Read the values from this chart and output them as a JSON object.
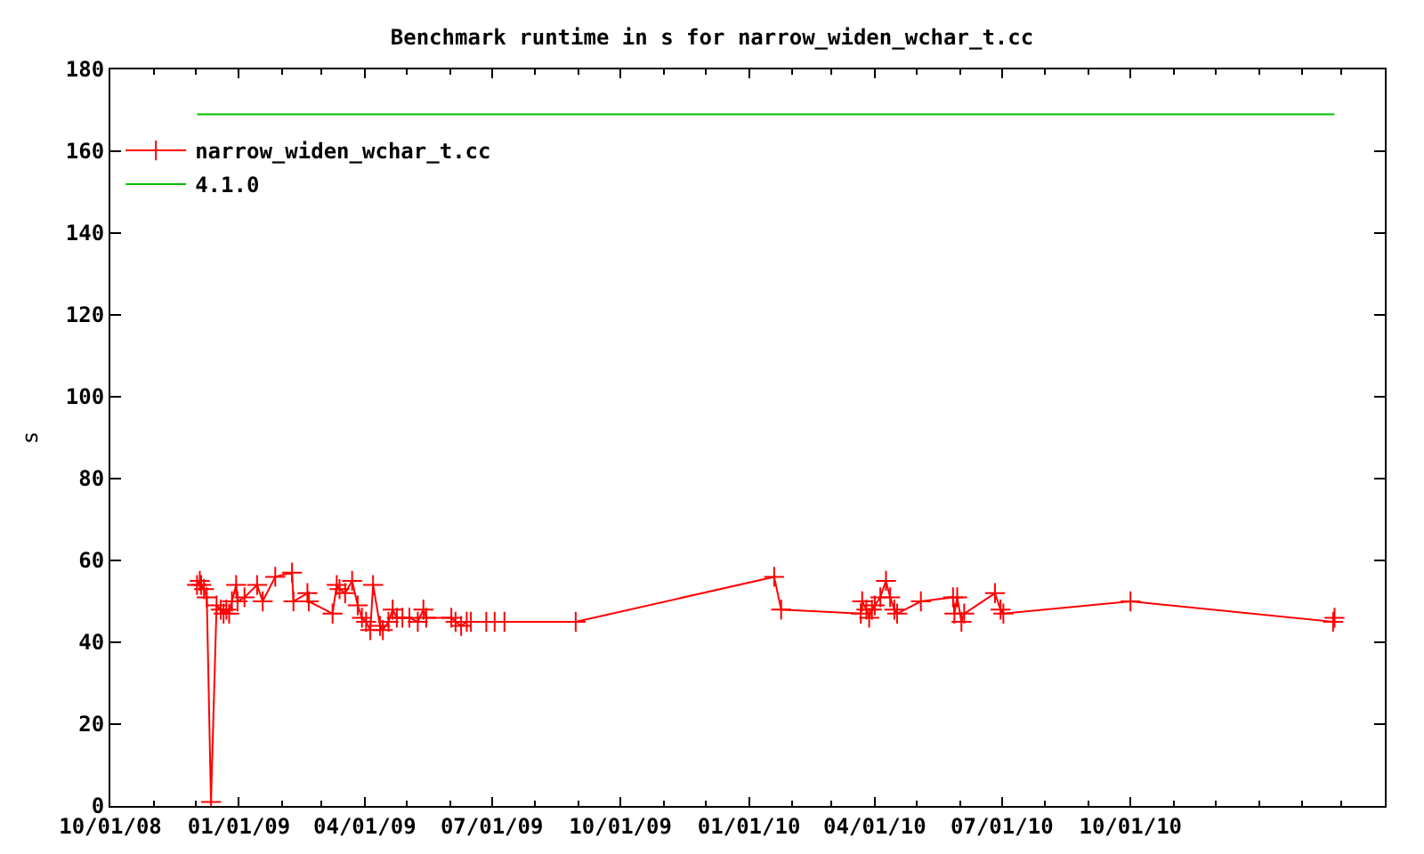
{
  "chart_data": {
    "type": "line",
    "title": "Benchmark runtime in s for narrow_widen_wchar_t.cc",
    "ylabel": "s",
    "xlim": [
      "2008-10-01",
      "2011-04-01"
    ],
    "xticks": [
      {
        "value": "2008-10-01",
        "label": "10/01/08"
      },
      {
        "value": "2008-11-01",
        "label": null
      },
      {
        "value": "2008-12-01",
        "label": null
      },
      {
        "value": "2009-01-01",
        "label": "01/01/09"
      },
      {
        "value": "2009-02-01",
        "label": null
      },
      {
        "value": "2009-03-01",
        "label": null
      },
      {
        "value": "2009-04-01",
        "label": "04/01/09"
      },
      {
        "value": "2009-05-01",
        "label": null
      },
      {
        "value": "2009-06-01",
        "label": null
      },
      {
        "value": "2009-07-01",
        "label": "07/01/09"
      },
      {
        "value": "2009-08-01",
        "label": null
      },
      {
        "value": "2009-09-01",
        "label": null
      },
      {
        "value": "2009-10-01",
        "label": "10/01/09"
      },
      {
        "value": "2009-11-01",
        "label": null
      },
      {
        "value": "2009-12-01",
        "label": null
      },
      {
        "value": "2010-01-01",
        "label": "01/01/10"
      },
      {
        "value": "2010-02-01",
        "label": null
      },
      {
        "value": "2010-03-01",
        "label": null
      },
      {
        "value": "2010-04-01",
        "label": "04/01/10"
      },
      {
        "value": "2010-05-01",
        "label": null
      },
      {
        "value": "2010-06-01",
        "label": null
      },
      {
        "value": "2010-07-01",
        "label": "07/01/10"
      },
      {
        "value": "2010-08-01",
        "label": null
      },
      {
        "value": "2010-09-01",
        "label": null
      },
      {
        "value": "2010-10-01",
        "label": "10/01/10"
      },
      {
        "value": "2010-11-01",
        "label": null
      },
      {
        "value": "2010-12-01",
        "label": null
      },
      {
        "value": "2011-01-01",
        "label": null
      },
      {
        "value": "2011-02-01",
        "label": null
      },
      {
        "value": "2011-03-01",
        "label": null
      }
    ],
    "ylim": [
      0,
      180
    ],
    "yticks": [
      0,
      20,
      40,
      60,
      80,
      100,
      120,
      140,
      160,
      180
    ],
    "legend": "top left",
    "marker": "cross",
    "series": [
      {
        "name": "narrow_widen_wchar_t.cc",
        "color": "#ff0000",
        "x": [
          "2008-12-02",
          "2008-12-04",
          "2008-12-05",
          "2008-12-07",
          "2008-12-09",
          "2008-12-12",
          "2008-12-16",
          "2008-12-19",
          "2008-12-21",
          "2008-12-23",
          "2008-12-25",
          "2008-12-27",
          "2008-12-30",
          "2008-12-31",
          "2009-01-05",
          "2009-01-14",
          "2009-01-18",
          "2009-01-27",
          "2009-02-08",
          "2009-02-09",
          "2009-02-19",
          "2009-02-20",
          "2009-03-09",
          "2009-03-12",
          "2009-03-14",
          "2009-03-18",
          "2009-03-23",
          "2009-03-27",
          "2009-03-30",
          "2009-04-02",
          "2009-04-05",
          "2009-04-07",
          "2009-04-12",
          "2009-04-14",
          "2009-04-18",
          "2009-04-21",
          "2009-04-24",
          "2009-04-28",
          "2009-05-03",
          "2009-05-09",
          "2009-05-13",
          "2009-05-15",
          "2009-06-02",
          "2009-06-05",
          "2009-06-09",
          "2009-06-13",
          "2009-06-16",
          "2009-06-27",
          "2009-07-03",
          "2009-07-10",
          "2009-08-30",
          "2010-01-19",
          "2010-01-24",
          "2010-03-22",
          "2010-03-23",
          "2010-03-26",
          "2010-03-28",
          "2010-03-30",
          "2010-04-01",
          "2010-04-05",
          "2010-04-09",
          "2010-04-12",
          "2010-04-15",
          "2010-04-17",
          "2010-05-04",
          "2010-05-27",
          "2010-05-28",
          "2010-05-30",
          "2010-06-02",
          "2010-06-04",
          "2010-06-26",
          "2010-06-30",
          "2010-07-02",
          "2010-10-01",
          "2011-02-23",
          "2011-02-24"
        ],
        "values": [
          54,
          55,
          54,
          53,
          51,
          1,
          49,
          48,
          47,
          48,
          47,
          50,
          54,
          50,
          51,
          54,
          50,
          56,
          57,
          50,
          52,
          50,
          47,
          54,
          53,
          52,
          55,
          49,
          46,
          45,
          43,
          54,
          44,
          43,
          45,
          48,
          46,
          46,
          46,
          45,
          48,
          46,
          46,
          45,
          44,
          45,
          45,
          45,
          45,
          45,
          45,
          56,
          48,
          47,
          50,
          48,
          46,
          48,
          49,
          51,
          55,
          51,
          48,
          47,
          50,
          51,
          47,
          51,
          45,
          47,
          52,
          48,
          47,
          50,
          45,
          46
        ]
      },
      {
        "name": "4.1.0",
        "color": "#00c000",
        "marker": "none",
        "x": [
          "2008-12-02",
          "2011-02-24"
        ],
        "values": [
          169,
          169
        ]
      }
    ]
  }
}
